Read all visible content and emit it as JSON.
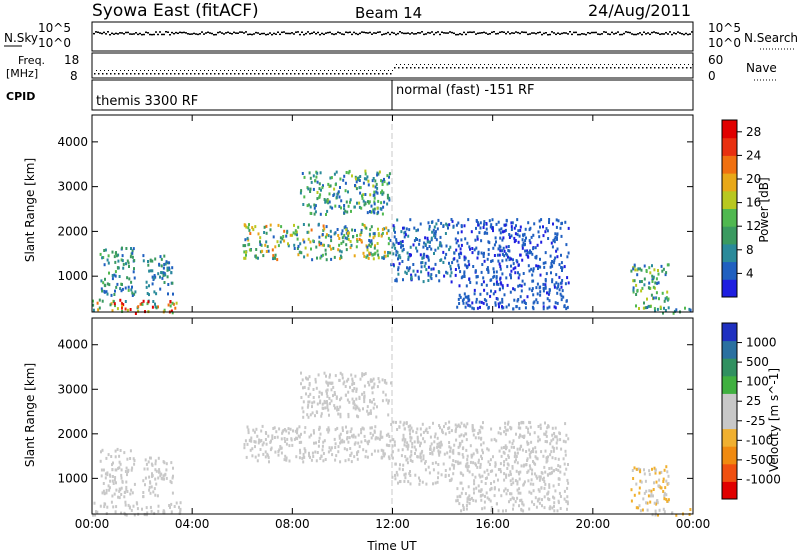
{
  "header": {
    "station": "Syowa East (fitACF)",
    "beam": "Beam 14",
    "date": "24/Aug/2011"
  },
  "top_panels": {
    "nsky_label": "N.Sky",
    "nsky_ticks": [
      "10^5",
      "10^0"
    ],
    "nsearch_label": "N.Search",
    "nsearch_ticks": [
      "10^5",
      "10^0"
    ],
    "freq_label_1": "Freq.",
    "freq_label_2": "[MHz]",
    "freq_ticks": [
      "18",
      "8"
    ],
    "nave_label": "Nave",
    "nave_ticks": [
      "60",
      "0"
    ],
    "cpid_label": "CPID",
    "cpid_segments": [
      {
        "text": "themis 3300 RF",
        "from_hour": 0,
        "to_hour": 12
      },
      {
        "text": "normal (fast) -151 RF",
        "from_hour": 12,
        "to_hour": 24
      }
    ]
  },
  "colors": {
    "power_scale": [
      "#1f1fe0",
      "#2060c0",
      "#2a8a9a",
      "#3a9a60",
      "#50b850",
      "#b8c820",
      "#e8a818",
      "#f07010",
      "#e83010",
      "#e00000"
    ],
    "velocity_scale": [
      "#e00000",
      "#f05010",
      "#f08a10",
      "#f0b030",
      "#c8c8c8",
      "#c8c8c8",
      "#40b040",
      "#309060",
      "#2a70a0",
      "#1f30c0"
    ]
  },
  "chart_data": [
    {
      "type": "heatmap",
      "title": "",
      "xlabel": "Time UT",
      "ylabel": "Slant Range [km]",
      "x_ticks": [
        "00:00",
        "04:00",
        "08:00",
        "12:00",
        "16:00",
        "20:00",
        "00:00"
      ],
      "y_ticks": [
        "1000",
        "2000",
        "3000",
        "4000"
      ],
      "xlim": [
        0,
        24
      ],
      "ylim": [
        200,
        4600
      ],
      "colorbar_label": "Power [dB]",
      "colorbar_ticks": [
        "4",
        "8",
        "12",
        "16",
        "20",
        "24",
        "28"
      ],
      "colorbar_range": [
        0,
        30
      ],
      "regions": [
        {
          "t": [
            0.0,
            3.5
          ],
          "r": [
            200,
            500
          ],
          "v": [
            6,
            30
          ]
        },
        {
          "t": [
            0.3,
            1.7
          ],
          "r": [
            600,
            1700
          ],
          "v": [
            3,
            14
          ]
        },
        {
          "t": [
            2.0,
            3.2
          ],
          "r": [
            600,
            1500
          ],
          "v": [
            3,
            12
          ]
        },
        {
          "t": [
            6.0,
            11.9
          ],
          "r": [
            1400,
            2200
          ],
          "v": [
            3,
            22
          ]
        },
        {
          "t": [
            8.3,
            11.9
          ],
          "r": [
            2400,
            3400
          ],
          "v": [
            3,
            16
          ]
        },
        {
          "t": [
            11.9,
            14.5
          ],
          "r": [
            900,
            2300
          ],
          "v": [
            2,
            8
          ]
        },
        {
          "t": [
            14.5,
            19.0
          ],
          "r": [
            300,
            2300
          ],
          "v": [
            2,
            6
          ]
        },
        {
          "t": [
            21.5,
            23.0
          ],
          "r": [
            300,
            1300
          ],
          "v": [
            3,
            18
          ]
        },
        {
          "t": [
            22.3,
            23.9
          ],
          "r": [
            200,
            350
          ],
          "v": [
            3,
            14
          ]
        }
      ]
    },
    {
      "type": "heatmap",
      "title": "",
      "xlabel": "Time UT",
      "ylabel": "Slant Range [km]",
      "x_ticks": [
        "00:00",
        "04:00",
        "08:00",
        "12:00",
        "16:00",
        "20:00",
        "00:00"
      ],
      "y_ticks": [
        "1000",
        "2000",
        "3000",
        "4000"
      ],
      "xlim": [
        0,
        24
      ],
      "ylim": [
        200,
        4600
      ],
      "colorbar_label": "Velocity [m s^-1]",
      "colorbar_ticks": [
        "1000",
        "500",
        "100",
        "25",
        "-25",
        "-100",
        "-500",
        "-1000"
      ],
      "colorbar_range": [
        -1000,
        1000
      ],
      "regions": [
        {
          "t": [
            0.0,
            3.5
          ],
          "r": [
            200,
            500
          ],
          "v": [
            -200,
            -60
          ]
        },
        {
          "t": [
            0.3,
            1.7
          ],
          "r": [
            600,
            1700
          ],
          "v": [
            -150,
            150
          ]
        },
        {
          "t": [
            2.0,
            3.2
          ],
          "r": [
            600,
            1500
          ],
          "v": [
            -100,
            120
          ]
        },
        {
          "t": [
            6.0,
            11.9
          ],
          "r": [
            1400,
            2200
          ],
          "v": [
            -25,
            25
          ]
        },
        {
          "t": [
            8.3,
            11.9
          ],
          "r": [
            2400,
            3400
          ],
          "v": [
            -25,
            40
          ]
        },
        {
          "t": [
            11.9,
            14.5
          ],
          "r": [
            900,
            2300
          ],
          "v": [
            -30,
            30
          ]
        },
        {
          "t": [
            14.5,
            19.0
          ],
          "r": [
            300,
            2300
          ],
          "v": [
            -40,
            40
          ]
        },
        {
          "t": [
            21.5,
            23.0
          ],
          "r": [
            300,
            1300
          ],
          "v": [
            -400,
            80
          ]
        },
        {
          "t": [
            22.3,
            23.9
          ],
          "r": [
            200,
            350
          ],
          "v": [
            -300,
            -100
          ]
        }
      ]
    }
  ]
}
